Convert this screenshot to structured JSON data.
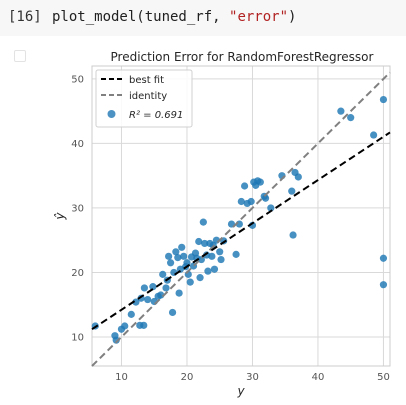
{
  "cell": {
    "prompt": "[16]",
    "code_fn": "plot_model(tuned_rf, ",
    "code_arg": "\"error\"",
    "code_end": ")"
  },
  "chart_data": {
    "type": "scatter",
    "title": "Prediction Error for RandomForestRegressor",
    "xlabel": "y",
    "ylabel": "ŷ",
    "xlim": [
      5.5,
      51
    ],
    "ylim": [
      5.5,
      52
    ],
    "xticks": [
      10,
      20,
      30,
      40,
      50
    ],
    "yticks": [
      10,
      20,
      30,
      40,
      50
    ],
    "grid": true,
    "legend_position": "top-left",
    "legend": {
      "best_fit": "best fit",
      "identity": "identity",
      "points": "R² = 0.691"
    },
    "best_fit": {
      "x": [
        5.5,
        51
      ],
      "y": [
        11.2,
        41.7
      ]
    },
    "identity": {
      "x": [
        5.5,
        51
      ],
      "y": [
        5.5,
        51
      ]
    },
    "colors": {
      "points": "#1f77b4",
      "best_fit": "#000000",
      "identity": "#808080"
    },
    "points": [
      [
        6,
        11.7
      ],
      [
        9,
        10.2
      ],
      [
        9.2,
        9.5
      ],
      [
        10,
        11.2
      ],
      [
        10.5,
        11.7
      ],
      [
        11.5,
        13.5
      ],
      [
        12.2,
        15.4
      ],
      [
        12.8,
        11.8
      ],
      [
        13.4,
        11.8
      ],
      [
        13,
        16
      ],
      [
        13.5,
        17.6
      ],
      [
        14,
        15.8
      ],
      [
        14.8,
        17.8
      ],
      [
        15,
        15.5
      ],
      [
        15.6,
        16.3
      ],
      [
        16,
        16.5
      ],
      [
        16.3,
        19.7
      ],
      [
        16.8,
        17.6
      ],
      [
        17,
        18.8
      ],
      [
        17.2,
        22.5
      ],
      [
        17.5,
        21.5
      ],
      [
        17.8,
        13.8
      ],
      [
        18,
        20
      ],
      [
        18.3,
        23.2
      ],
      [
        18.6,
        22.3
      ],
      [
        18.8,
        16.8
      ],
      [
        19,
        20.5
      ],
      [
        19.2,
        23.9
      ],
      [
        19.5,
        22.5
      ],
      [
        19.8,
        20.9
      ],
      [
        20,
        21.5
      ],
      [
        20.2,
        19.7
      ],
      [
        20.5,
        18.5
      ],
      [
        20.7,
        22.4
      ],
      [
        21,
        21
      ],
      [
        21.3,
        23
      ],
      [
        21.5,
        22.2
      ],
      [
        21.8,
        24.8
      ],
      [
        22,
        19.2
      ],
      [
        22.2,
        22
      ],
      [
        22.5,
        27.8
      ],
      [
        22.7,
        24.5
      ],
      [
        23,
        22.7
      ],
      [
        23.2,
        20.2
      ],
      [
        23.5,
        24.5
      ],
      [
        23.8,
        22.5
      ],
      [
        24,
        24.2
      ],
      [
        24.2,
        20.5
      ],
      [
        24.5,
        25
      ],
      [
        25,
        23.2
      ],
      [
        25.2,
        22
      ],
      [
        25.6,
        24.9
      ],
      [
        26.8,
        27.5
      ],
      [
        27.5,
        22.8
      ],
      [
        28,
        27.5
      ],
      [
        28.3,
        31
      ],
      [
        28.8,
        33.4
      ],
      [
        29.2,
        30.7
      ],
      [
        29.8,
        31
      ],
      [
        30,
        27.3
      ],
      [
        30.2,
        34
      ],
      [
        30.5,
        33.5
      ],
      [
        30.8,
        34.2
      ],
      [
        31.2,
        34
      ],
      [
        31.8,
        31.8
      ],
      [
        32,
        31.5
      ],
      [
        32.8,
        30
      ],
      [
        34.5,
        35
      ],
      [
        36,
        32.6
      ],
      [
        36.2,
        25.8
      ],
      [
        36.5,
        35.5
      ],
      [
        37,
        34.8
      ],
      [
        43.5,
        45
      ],
      [
        45,
        44
      ],
      [
        48.5,
        41.3
      ],
      [
        50,
        46.8
      ],
      [
        50,
        22.2
      ],
      [
        50,
        18.1
      ]
    ]
  }
}
